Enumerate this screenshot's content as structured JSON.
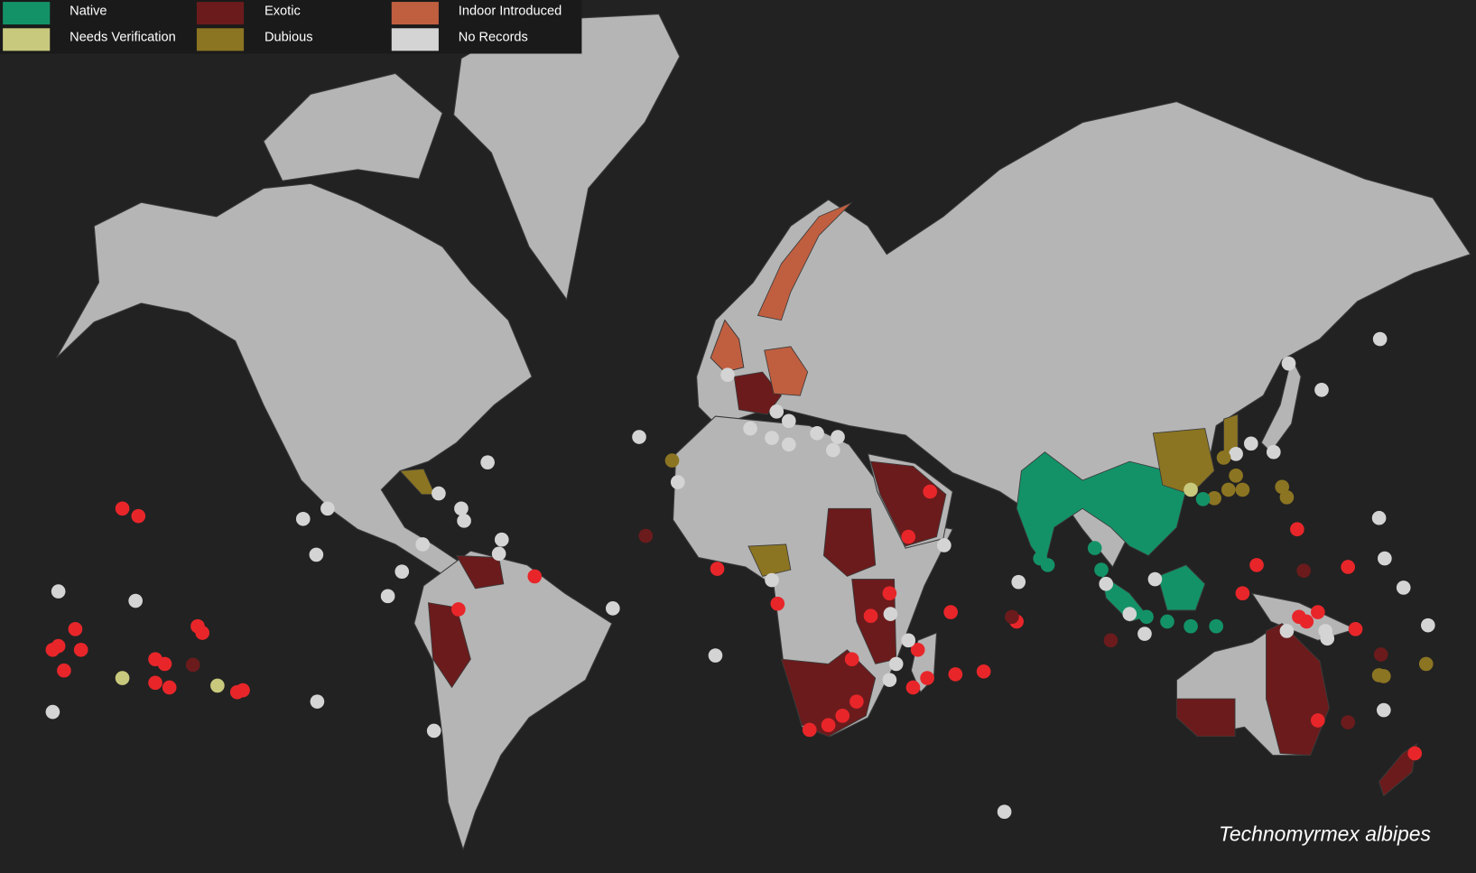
{
  "legend": [
    {
      "label": "Native",
      "color": "#139268"
    },
    {
      "label": "Exotic",
      "color": "#6b1b1c"
    },
    {
      "label": "Indoor Introduced",
      "color": "#c05f40"
    },
    {
      "label": "Needs Verification",
      "color": "#c9c97e"
    },
    {
      "label": "Dubious",
      "color": "#8c7522"
    },
    {
      "label": "No Records",
      "color": "#d4d4d4"
    }
  ],
  "species": "Technomyrmex albipes"
}
